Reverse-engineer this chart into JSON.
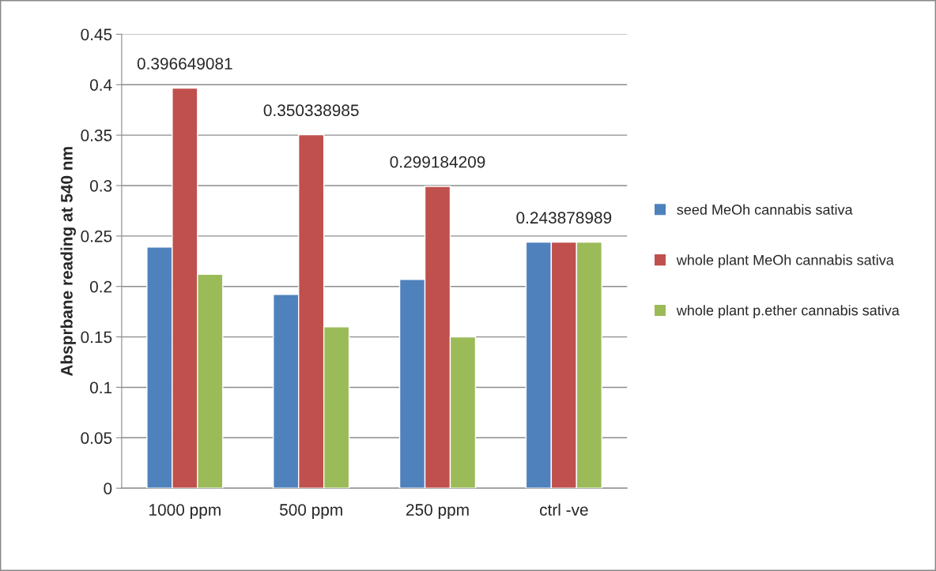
{
  "chart_data": {
    "type": "bar",
    "ylabel": "Absprbane reading at 540 nm",
    "categories": [
      "1000 ppm",
      "500 ppm",
      "250 ppm",
      "ctrl -ve"
    ],
    "series": [
      {
        "name": "seed MeOh cannabis sativa",
        "color": "#4f81bd",
        "values": [
          0.239,
          0.192,
          0.207,
          0.244
        ]
      },
      {
        "name": "whole plant MeOh cannabis sativa",
        "color": "#c0504d",
        "values": [
          0.396649081,
          0.350338985,
          0.299184209,
          0.243878989
        ],
        "value_labels": [
          "0.396649081",
          "0.350338985",
          "0.299184209",
          "0.243878989"
        ]
      },
      {
        "name": "whole plant p.ether cannabis sativa",
        "color": "#9bbb59",
        "values": [
          0.212,
          0.16,
          0.15,
          0.244
        ]
      }
    ],
    "ylim": [
      0,
      0.45
    ],
    "yticks": [
      {
        "value": 0,
        "label": "0"
      },
      {
        "value": 0.05,
        "label": "0.05"
      },
      {
        "value": 0.1,
        "label": "0.1"
      },
      {
        "value": 0.15,
        "label": "0.15"
      },
      {
        "value": 0.2,
        "label": "0.2"
      },
      {
        "value": 0.25,
        "label": "0.25"
      },
      {
        "value": 0.3,
        "label": "0.3"
      },
      {
        "value": 0.35,
        "label": "0.35"
      },
      {
        "value": 0.4,
        "label": "0.4"
      },
      {
        "value": 0.45,
        "label": "0.45"
      }
    ],
    "grid": "y",
    "legend": "right"
  }
}
